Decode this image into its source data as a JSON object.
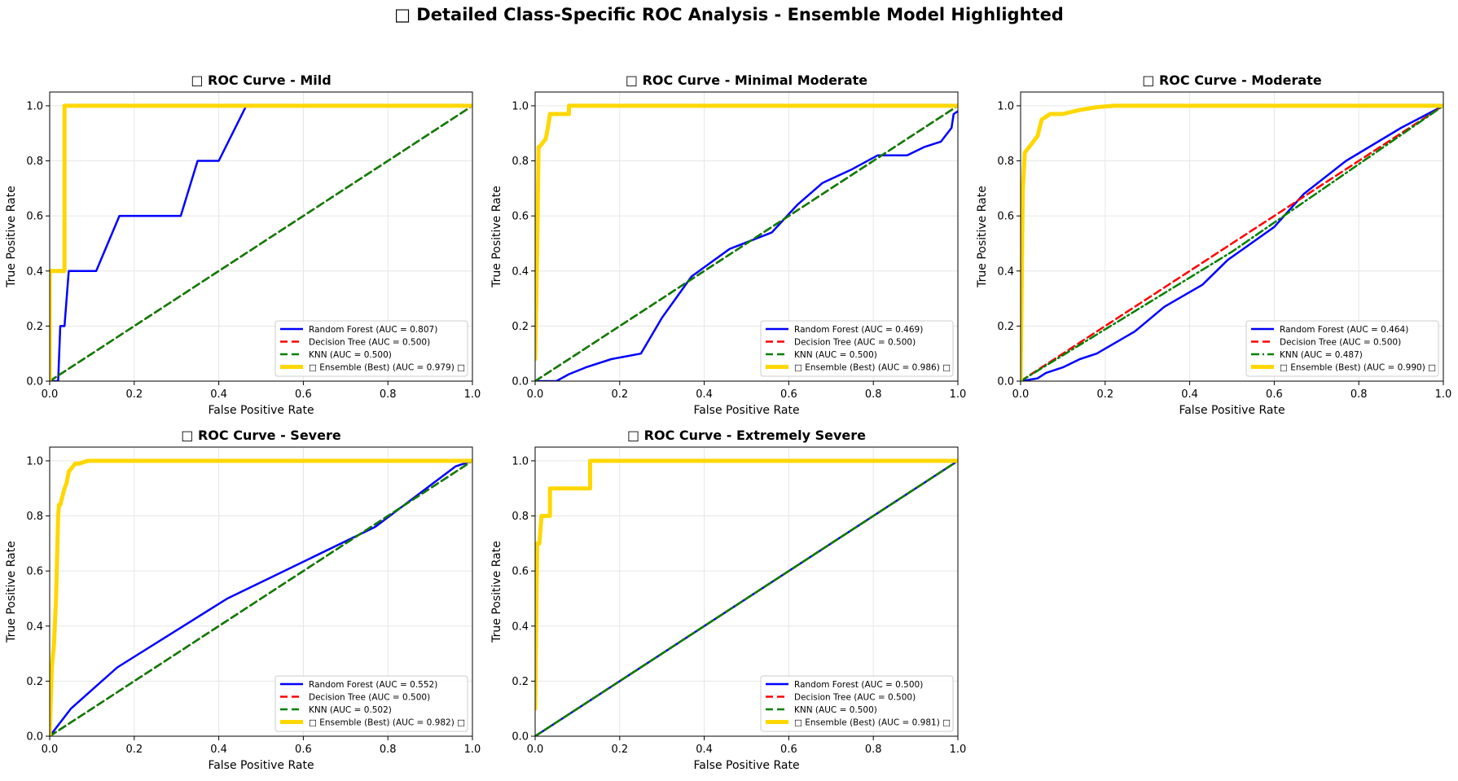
{
  "figure": {
    "title": "□ Detailed Class-Specific ROC Analysis - Ensemble Model Highlighted"
  },
  "colors": {
    "random_forest": "#0000ff",
    "decision_tree": "#ff0000",
    "knn": "#008000",
    "ensemble": "#ffd700",
    "grid": "#e6e6e6"
  },
  "chart_data": [
    {
      "type": "line",
      "title": "□ ROC Curve - Mild",
      "xlabel": "False Positive Rate",
      "ylabel": "True Positive Rate",
      "xlim": [
        0,
        1
      ],
      "ylim": [
        0,
        1.05
      ],
      "xticks": [
        "0.0",
        "0.2",
        "0.4",
        "0.6",
        "0.8",
        "1.0"
      ],
      "yticks": [
        "0.0",
        "0.2",
        "0.4",
        "0.6",
        "0.8",
        "1.0"
      ],
      "grid": true,
      "legend_position": "lower-right",
      "series": [
        {
          "name": "Random Forest (AUC = 0.807)",
          "style": "solid",
          "color": "#0000ff",
          "x": [
            0,
            0.02,
            0.025,
            0.035,
            0.045,
            0.11,
            0.165,
            0.31,
            0.35,
            0.4,
            0.465
          ],
          "y": [
            0,
            0,
            0.2,
            0.2,
            0.4,
            0.4,
            0.6,
            0.6,
            0.8,
            0.8,
            1.0
          ]
        },
        {
          "name": "Decision Tree (AUC = 0.500)",
          "style": "dashed",
          "color": "#ff0000",
          "x": [
            0,
            1
          ],
          "y": [
            0,
            1
          ]
        },
        {
          "name": "KNN (AUC = 0.500)",
          "style": "dashed",
          "color": "#008000",
          "x": [
            0,
            1
          ],
          "y": [
            0,
            1
          ]
        },
        {
          "name": "□ Ensemble (Best) (AUC = 0.979) □",
          "style": "thick",
          "color": "#ffd700",
          "x": [
            0,
            0,
            0.035,
            0.035,
            1
          ],
          "y": [
            0,
            0.4,
            0.4,
            1.0,
            1.0
          ]
        }
      ]
    },
    {
      "type": "line",
      "title": "□ ROC Curve - Minimal Moderate",
      "xlabel": "False Positive Rate",
      "ylabel": "True Positive Rate",
      "xlim": [
        0,
        1
      ],
      "ylim": [
        0,
        1.05
      ],
      "xticks": [
        "0.0",
        "0.2",
        "0.4",
        "0.6",
        "0.8",
        "1.0"
      ],
      "yticks": [
        "0.0",
        "0.2",
        "0.4",
        "0.6",
        "0.8",
        "1.0"
      ],
      "grid": true,
      "legend_position": "lower-right",
      "series": [
        {
          "name": "Random Forest (AUC = 0.469)",
          "style": "solid",
          "color": "#0000ff",
          "x": [
            0,
            0.05,
            0.08,
            0.12,
            0.18,
            0.25,
            0.3,
            0.37,
            0.46,
            0.51,
            0.56,
            0.62,
            0.68,
            0.75,
            0.81,
            0.88,
            0.92,
            0.96,
            0.985,
            0.99,
            1.0
          ],
          "y": [
            0,
            0,
            0.025,
            0.05,
            0.08,
            0.1,
            0.23,
            0.38,
            0.48,
            0.51,
            0.54,
            0.64,
            0.72,
            0.77,
            0.82,
            0.82,
            0.85,
            0.87,
            0.92,
            0.97,
            0.98
          ]
        },
        {
          "name": "Decision Tree (AUC = 0.500)",
          "style": "dashed",
          "color": "#ff0000",
          "x": [
            0,
            1
          ],
          "y": [
            0,
            1
          ]
        },
        {
          "name": "KNN (AUC = 0.500)",
          "style": "dashed",
          "color": "#008000",
          "x": [
            0,
            1
          ],
          "y": [
            0,
            1
          ]
        },
        {
          "name": "□ Ensemble (Best) (AUC = 0.986) □",
          "style": "thick",
          "color": "#ffd700",
          "x": [
            0,
            0.005,
            0.008,
            0.01,
            0.025,
            0.03,
            0.035,
            0.08,
            0.08,
            1.0
          ],
          "y": [
            0.08,
            0.5,
            0.85,
            0.85,
            0.88,
            0.92,
            0.97,
            0.97,
            1.0,
            1.0
          ]
        }
      ]
    },
    {
      "type": "line",
      "title": "□ ROC Curve - Moderate",
      "xlabel": "False Positive Rate",
      "ylabel": "True Positive Rate",
      "xlim": [
        0,
        1
      ],
      "ylim": [
        0,
        1.05
      ],
      "xticks": [
        "0.0",
        "0.2",
        "0.4",
        "0.6",
        "0.8",
        "1.0"
      ],
      "yticks": [
        "0.0",
        "0.2",
        "0.4",
        "0.6",
        "0.8",
        "1.0"
      ],
      "grid": true,
      "legend_position": "lower-right",
      "series": [
        {
          "name": "Random Forest (AUC = 0.464)",
          "style": "solid",
          "color": "#0000ff",
          "x": [
            0,
            0.04,
            0.06,
            0.1,
            0.14,
            0.18,
            0.27,
            0.34,
            0.43,
            0.49,
            0.6,
            0.67,
            0.77,
            0.9,
            1.0
          ],
          "y": [
            0,
            0.01,
            0.03,
            0.05,
            0.08,
            0.1,
            0.18,
            0.27,
            0.35,
            0.44,
            0.56,
            0.68,
            0.8,
            0.92,
            1.0
          ]
        },
        {
          "name": "Decision Tree (AUC = 0.500)",
          "style": "dashed",
          "color": "#ff0000",
          "x": [
            0,
            1
          ],
          "y": [
            0,
            1
          ]
        },
        {
          "name": "KNN (AUC = 0.487)",
          "style": "dashdot",
          "color": "#008000",
          "x": [
            0,
            0.5,
            1
          ],
          "y": [
            0,
            0.47,
            1
          ]
        },
        {
          "name": "□ Ensemble (Best) (AUC = 0.990) □",
          "style": "thick",
          "color": "#ffd700",
          "x": [
            0,
            0.005,
            0.01,
            0.02,
            0.03,
            0.04,
            0.05,
            0.07,
            0.1,
            0.14,
            0.18,
            0.22,
            0.3,
            1.0
          ],
          "y": [
            0,
            0.69,
            0.83,
            0.85,
            0.87,
            0.89,
            0.95,
            0.97,
            0.97,
            0.985,
            0.995,
            1.0,
            1.0,
            1.0
          ]
        }
      ]
    },
    {
      "type": "line",
      "title": "□ ROC Curve - Severe",
      "xlabel": "False Positive Rate",
      "ylabel": "True Positive Rate",
      "xlim": [
        0,
        1
      ],
      "ylim": [
        0,
        1.05
      ],
      "xticks": [
        "0.0",
        "0.2",
        "0.4",
        "0.6",
        "0.8",
        "1.0"
      ],
      "yticks": [
        "0.0",
        "0.2",
        "0.4",
        "0.6",
        "0.8",
        "1.0"
      ],
      "grid": true,
      "legend_position": "lower-right",
      "series": [
        {
          "name": "Random Forest (AUC = 0.552)",
          "style": "solid",
          "color": "#0000ff",
          "x": [
            0,
            0.05,
            0.16,
            0.42,
            0.77,
            0.96,
            1.0
          ],
          "y": [
            0,
            0.1,
            0.25,
            0.5,
            0.76,
            0.98,
            1.0
          ]
        },
        {
          "name": "Decision Tree (AUC = 0.500)",
          "style": "dashed",
          "color": "#ff0000",
          "x": [
            0,
            1
          ],
          "y": [
            0,
            1
          ]
        },
        {
          "name": "KNN (AUC = 0.502)",
          "style": "dashed",
          "color": "#008000",
          "x": [
            0,
            1
          ],
          "y": [
            0,
            1
          ]
        },
        {
          "name": "□ Ensemble (Best) (AUC = 0.982) □",
          "style": "thick",
          "color": "#ffd700",
          "x": [
            0,
            0.005,
            0.01,
            0.015,
            0.02,
            0.022,
            0.025,
            0.03,
            0.035,
            0.04,
            0.045,
            0.05,
            0.06,
            0.07,
            0.09,
            0.1,
            1.0
          ],
          "y": [
            0,
            0.25,
            0.33,
            0.5,
            0.8,
            0.84,
            0.84,
            0.87,
            0.9,
            0.92,
            0.96,
            0.97,
            0.99,
            0.99,
            1.0,
            1.0,
            1.0
          ]
        }
      ]
    },
    {
      "type": "line",
      "title": "□ ROC Curve - Extremely Severe",
      "xlabel": "False Positive Rate",
      "ylabel": "True Positive Rate",
      "xlim": [
        0,
        1
      ],
      "ylim": [
        0,
        1.05
      ],
      "xticks": [
        "0.0",
        "0.2",
        "0.4",
        "0.6",
        "0.8",
        "1.0"
      ],
      "yticks": [
        "0.0",
        "0.2",
        "0.4",
        "0.6",
        "0.8",
        "1.0"
      ],
      "grid": true,
      "legend_position": "lower-right",
      "series": [
        {
          "name": "Random Forest (AUC = 0.500)",
          "style": "solid",
          "color": "#0000ff",
          "x": [
            0,
            1
          ],
          "y": [
            0,
            1
          ]
        },
        {
          "name": "Decision Tree (AUC = 0.500)",
          "style": "dashed",
          "color": "#ff0000",
          "x": [
            0,
            1
          ],
          "y": [
            0,
            1
          ]
        },
        {
          "name": "KNN (AUC = 0.500)",
          "style": "dashed",
          "color": "#008000",
          "x": [
            0,
            1
          ],
          "y": [
            0,
            1
          ]
        },
        {
          "name": "□ Ensemble (Best) (AUC = 0.981) □",
          "style": "thick",
          "color": "#ffd700",
          "x": [
            0,
            0.003,
            0.005,
            0.01,
            0.015,
            0.035,
            0.035,
            0.13,
            0.13,
            1.0
          ],
          "y": [
            0.1,
            0.5,
            0.7,
            0.7,
            0.8,
            0.8,
            0.9,
            0.9,
            1.0,
            1.0
          ]
        }
      ]
    }
  ]
}
